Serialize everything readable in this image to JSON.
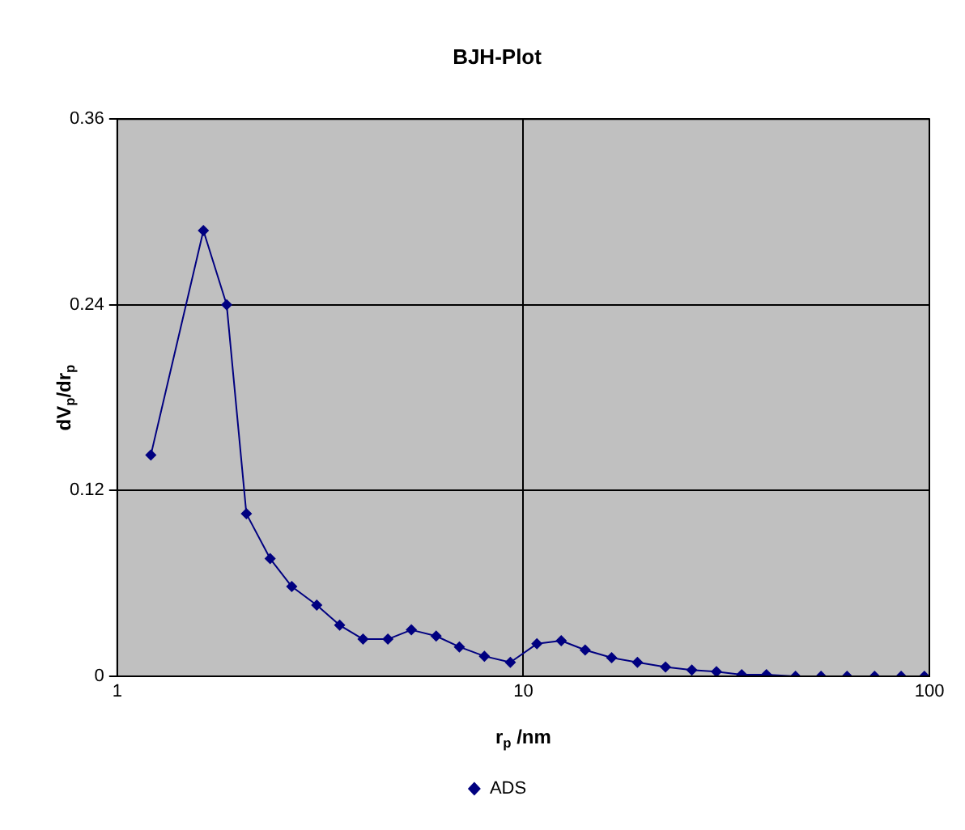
{
  "chart_data": {
    "type": "line",
    "title": "BJH-Plot",
    "xlabel": "r$_{p}$ /nm",
    "ylabel": "dV$_{p}$/dr$_{p}$",
    "log": "x",
    "xlim": [
      1,
      100
    ],
    "xticks": [
      1,
      10,
      100
    ],
    "ylim": [
      0,
      0.36
    ],
    "yticks": [
      0,
      0.12,
      0.24,
      0.36
    ],
    "grid": true,
    "legend": "bottom",
    "marker": "diamond",
    "line_style": "solid",
    "x": [
      1.21,
      1.63,
      1.86,
      2.08,
      2.38,
      2.69,
      3.1,
      3.53,
      4.03,
      4.64,
      5.3,
      6.1,
      6.96,
      8.02,
      9.29,
      10.8,
      12.4,
      14.2,
      16.5,
      19.1,
      22.4,
      26,
      29.9,
      34.5,
      39.7,
      46.8,
      54.1,
      62.7,
      73.3,
      85.2,
      97.2
    ],
    "series": [
      {
        "name": "ADS",
        "color": "#000080",
        "values": [
          0.143,
          0.288,
          0.24,
          0.105,
          0.076,
          0.058,
          0.046,
          0.033,
          0.024,
          0.024,
          0.03,
          0.026,
          0.019,
          0.013,
          0.009,
          0.021,
          0.023,
          0.017,
          0.012,
          0.009,
          0.006,
          0.004,
          0.003,
          0.001,
          0.001,
          0,
          0,
          0,
          0,
          0,
          0
        ]
      }
    ]
  }
}
